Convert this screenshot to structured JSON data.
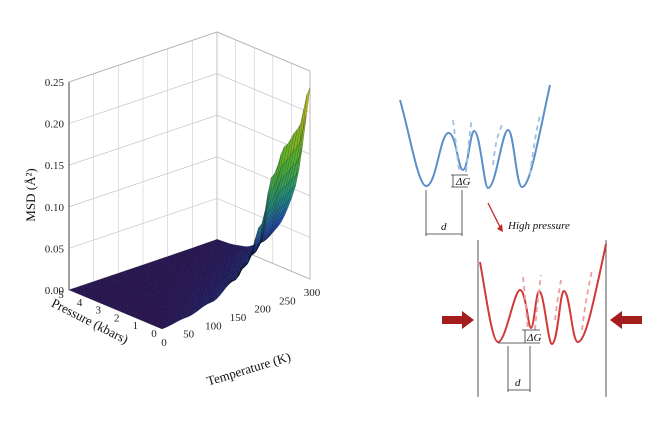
{
  "chart_data": [
    {
      "type": "surface",
      "xlabel": "Temperature (K)",
      "ylabel": "Pressure (kbars)",
      "zlabel": "MSD (Å²)",
      "x_ticks": [
        "0",
        "50",
        "100",
        "150",
        "200",
        "250",
        "300"
      ],
      "y_ticks": [
        "0",
        "1",
        "2",
        "3",
        "4",
        "5"
      ],
      "z_ticks": [
        "0.00",
        "0.05",
        "0.10",
        "0.15",
        "0.20",
        "0.25"
      ],
      "xlim": [
        0,
        300
      ],
      "ylim": [
        0,
        5
      ],
      "zlim": [
        0,
        0.25
      ],
      "grid": true,
      "colormap": [
        "#2a1458",
        "#1b2a8c",
        "#1f4fb0",
        "#1f8f7a",
        "#4fb02c",
        "#a8b81f",
        "#d9b01a"
      ],
      "surface": {
        "p0_profile": {
          "T": [
            0,
            50,
            100,
            150,
            175,
            200,
            225,
            250,
            275,
            300
          ],
          "msd": [
            0.0,
            0.004,
            0.012,
            0.03,
            0.05,
            0.085,
            0.14,
            0.17,
            0.185,
            0.23
          ]
        },
        "pressure_decay_note": ""
      }
    },
    {
      "type": "diagram",
      "panels": [
        {
          "name": "ambient",
          "line_color": "#5b8fc7",
          "labels": {
            "barrier": "ΔG",
            "distance": "d"
          }
        },
        {
          "name": "high-pressure",
          "line_color": "#d23a3a",
          "labels": {
            "barrier": "ΔG",
            "distance": "d"
          }
        }
      ],
      "transition_label": "High pressure",
      "arrow_color": "#a51c1c"
    }
  ]
}
